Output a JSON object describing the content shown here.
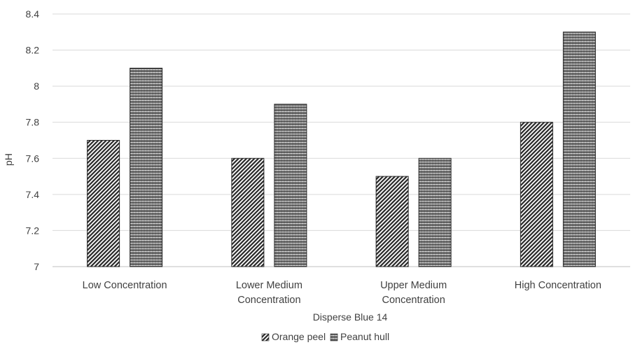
{
  "chart_data": {
    "type": "bar",
    "title": "",
    "xlabel": "Disperse Blue 14",
    "ylabel": "pH",
    "ylim": [
      7,
      8.4
    ],
    "yticks": [
      "7",
      "7.2",
      "7.4",
      "7.6",
      "7.8",
      "8",
      "8.2",
      "8.4"
    ],
    "categories": [
      [
        "Low Concentration"
      ],
      [
        "Lower Medium",
        "Concentration"
      ],
      [
        "Upper Medium",
        "Concentration"
      ],
      [
        "High Concentration"
      ]
    ],
    "series": [
      {
        "name": "Orange peel",
        "values": [
          7.7,
          7.6,
          7.5,
          7.8
        ],
        "pattern": "diagonal-dense"
      },
      {
        "name": "Peanut hull",
        "values": [
          8.1,
          7.9,
          7.6,
          8.3
        ],
        "pattern": "zigzag"
      }
    ],
    "grid": true,
    "legend_position": "bottom",
    "colors": {
      "bar_ink": "#262626",
      "grid": "#d9d9d9",
      "text": "#404040"
    }
  }
}
